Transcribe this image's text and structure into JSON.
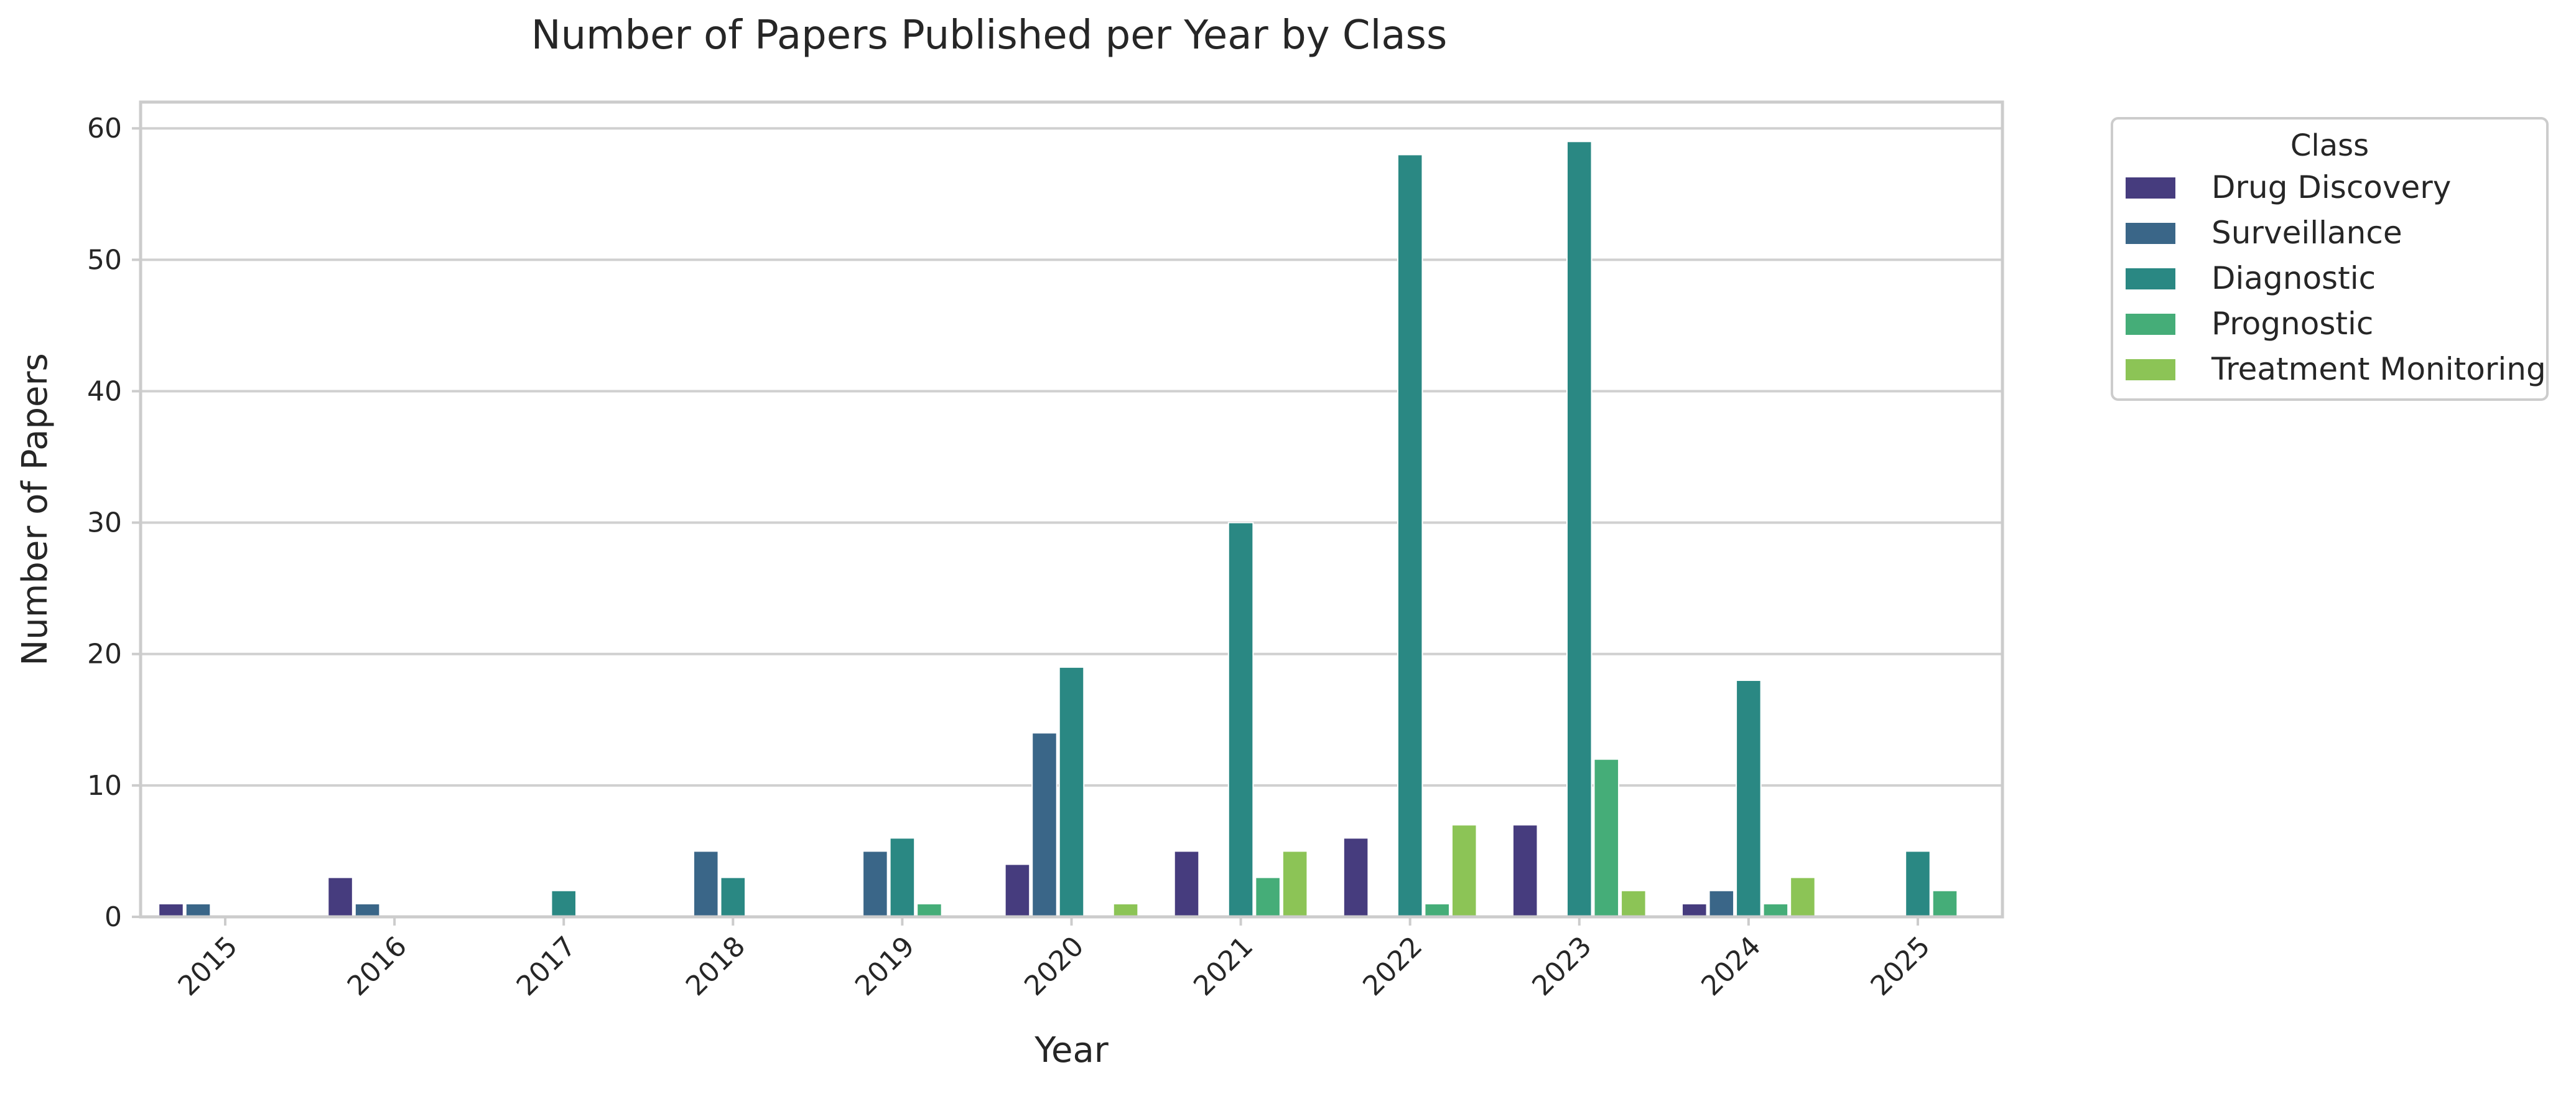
{
  "chart_data": {
    "type": "bar",
    "title": "Number of Papers Published per Year by Class",
    "xlabel": "Year",
    "ylabel": "Number of Papers",
    "categories": [
      "2015",
      "2016",
      "2017",
      "2018",
      "2019",
      "2020",
      "2021",
      "2022",
      "2023",
      "2024",
      "2025"
    ],
    "ylim": [
      0,
      62
    ],
    "yticks": [
      0,
      10,
      20,
      30,
      40,
      50,
      60
    ],
    "grid": true,
    "legend": {
      "title": "Class",
      "placement": "outside-top-right"
    },
    "series": [
      {
        "name": "Drug Discovery",
        "color": "#463c7e",
        "values": [
          1,
          3,
          0,
          0,
          0,
          4,
          5,
          6,
          7,
          1,
          0
        ]
      },
      {
        "name": "Surveillance",
        "color": "#3a6688",
        "values": [
          1,
          1,
          0,
          5,
          5,
          14,
          0,
          0,
          0,
          2,
          0
        ]
      },
      {
        "name": "Diagnostic",
        "color": "#2a8883",
        "values": [
          0,
          0,
          2,
          3,
          6,
          19,
          30,
          58,
          59,
          18,
          5
        ]
      },
      {
        "name": "Prognostic",
        "color": "#45ad78",
        "values": [
          0,
          0,
          0,
          0,
          1,
          0,
          3,
          1,
          12,
          1,
          2
        ]
      },
      {
        "name": "Treatment Monitoring",
        "color": "#8cc456",
        "values": [
          0,
          0,
          0,
          0,
          0,
          1,
          5,
          7,
          2,
          3,
          0
        ]
      }
    ]
  }
}
